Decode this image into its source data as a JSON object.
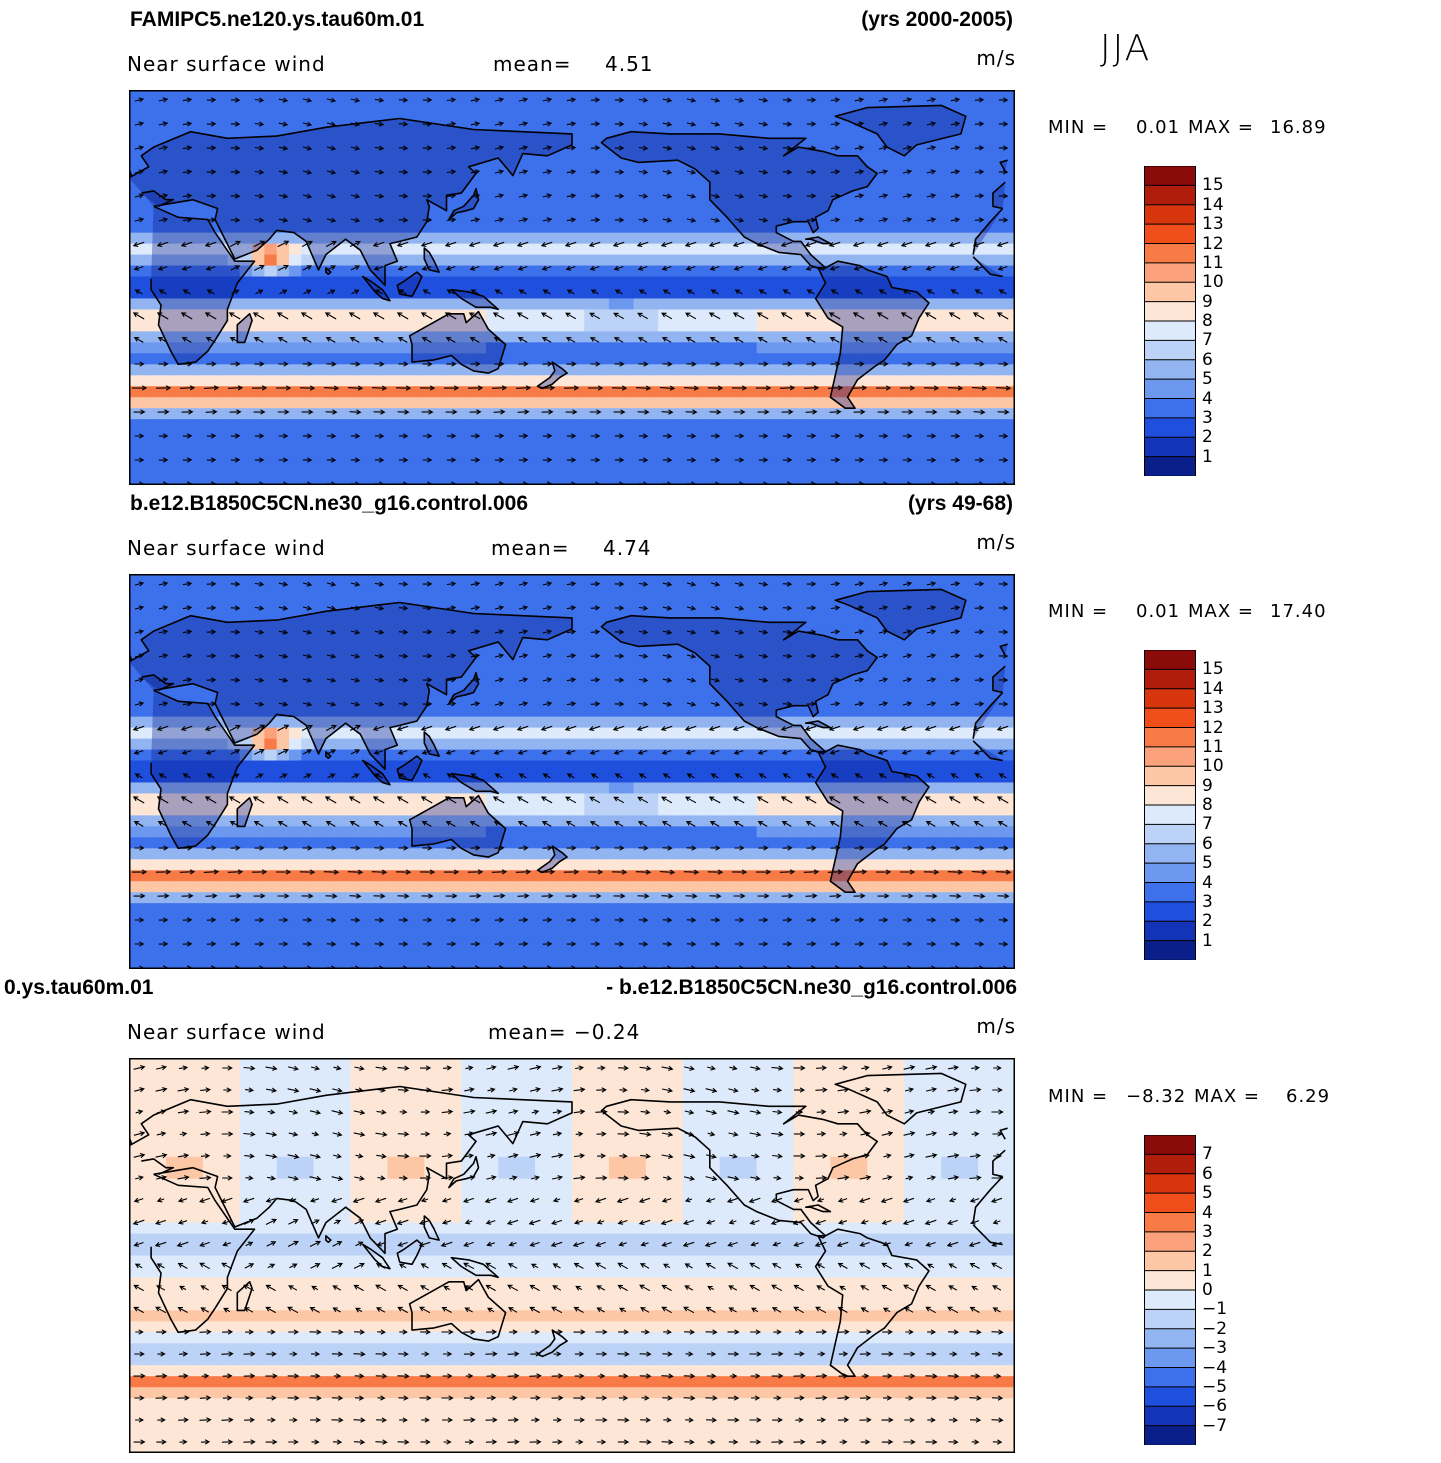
{
  "season": "JJA",
  "panels": [
    {
      "case_name": "FAMIPC5.ne120.ys.tau60m.01",
      "years": "(yrs 2000-2005)",
      "variable": "Near surface wind",
      "mean_label": "mean=",
      "mean_value": "4.51",
      "units": "m/s",
      "min_label": "MIN =",
      "min_value": "0.01",
      "max_label": "MAX =",
      "max_value": "16.89",
      "colorbar_labels": [
        "15",
        "14",
        "13",
        "12",
        "11",
        "10",
        "9",
        "8",
        "7",
        "6",
        "5",
        "4",
        "3",
        "2",
        "1"
      ],
      "colorbar_colors": [
        "#8b0a0a",
        "#b01d0a",
        "#d6350e",
        "#f04f1c",
        "#f87a46",
        "#fba27c",
        "#fdc6a5",
        "#fde6d6",
        "#ddeafb",
        "#bcd3f7",
        "#92b5f2",
        "#6d98ef",
        "#3d70eb",
        "#1f4fdd",
        "#1334b8",
        "#0a1f8a"
      ],
      "palette": "positive"
    },
    {
      "case_name": "b.e12.B1850C5CN.ne30_g16.control.006",
      "years": "(yrs 49-68)",
      "variable": "Near surface wind",
      "mean_label": "mean=",
      "mean_value": "4.74",
      "units": "m/s",
      "min_label": "MIN =",
      "min_value": "0.01",
      "max_label": "MAX =",
      "max_value": "17.40",
      "colorbar_labels": [
        "15",
        "14",
        "13",
        "12",
        "11",
        "10",
        "9",
        "8",
        "7",
        "6",
        "5",
        "4",
        "3",
        "2",
        "1"
      ],
      "colorbar_colors": [
        "#8b0a0a",
        "#b01d0a",
        "#d6350e",
        "#f04f1c",
        "#f87a46",
        "#fba27c",
        "#fdc6a5",
        "#fde6d6",
        "#ddeafb",
        "#bcd3f7",
        "#92b5f2",
        "#6d98ef",
        "#3d70eb",
        "#1f4fdd",
        "#1334b8",
        "#0a1f8a"
      ],
      "palette": "positive"
    },
    {
      "case_name": "0.ys.tau60m.01",
      "years": "- b.e12.B1850C5CN.ne30_g16.control.006",
      "variable": "Near surface wind",
      "mean_label": "mean=",
      "mean_value": "−0.24",
      "units": "m/s",
      "min_label": "MIN =",
      "min_value": "−8.32",
      "max_label": "MAX =",
      "max_value": "6.29",
      "colorbar_labels": [
        "7",
        "6",
        "5",
        "4",
        "3",
        "2",
        "1",
        "0",
        "−1",
        "−2",
        "−3",
        "−4",
        "−5",
        "−6",
        "−7"
      ],
      "colorbar_colors": [
        "#8b0a0a",
        "#b01d0a",
        "#d6350e",
        "#f04f1c",
        "#f87a46",
        "#fba27c",
        "#fdc6a5",
        "#fde6d6",
        "#ddeafb",
        "#bcd3f7",
        "#92b5f2",
        "#6d98ef",
        "#3d70eb",
        "#1f4fdd",
        "#1334b8",
        "#0a1f8a"
      ],
      "palette": "diverging"
    }
  ]
}
